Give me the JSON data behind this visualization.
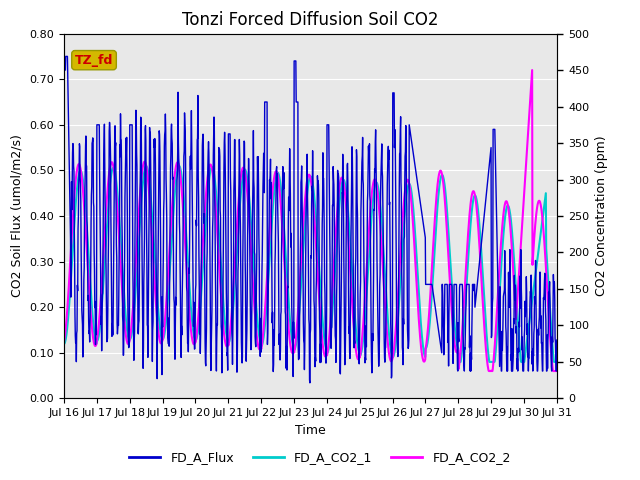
{
  "title": "Tonzi Forced Diffusion Soil CO2",
  "xlabel": "Time",
  "ylabel_left": "CO2 Soil Flux (umol/m2/s)",
  "ylabel_right": "CO2 Concentration (ppm)",
  "tag_label": "TZ_fd",
  "tag_color_bg": "#d4b800",
  "tag_color_text": "#cc0000",
  "xlim_days": [
    16,
    31
  ],
  "ylim_left": [
    0.0,
    0.8
  ],
  "ylim_right": [
    0,
    500
  ],
  "yticks_left": [
    0.0,
    0.1,
    0.2,
    0.3,
    0.4,
    0.5,
    0.6,
    0.7,
    0.8
  ],
  "yticks_right": [
    0,
    50,
    100,
    150,
    200,
    250,
    300,
    350,
    400,
    450,
    500
  ],
  "xtick_positions": [
    16,
    17,
    18,
    19,
    20,
    21,
    22,
    23,
    24,
    25,
    26,
    27,
    28,
    29,
    30,
    31
  ],
  "xticks_labels": [
    "Jul 16",
    "Jul 17",
    "Jul 18",
    "Jul 19",
    "Jul 20",
    "Jul 21",
    "Jul 22",
    "Jul 23",
    "Jul 24",
    "Jul 25",
    "Jul 26",
    "Jul 27",
    "Jul 28",
    "Jul 29",
    "Jul 30",
    "Jul 31"
  ],
  "color_flux": "#0000cc",
  "color_co2_1": "#00cccc",
  "color_co2_2": "#ff00ff",
  "legend_labels": [
    "FD_A_Flux",
    "FD_A_CO2_1",
    "FD_A_CO2_2"
  ],
  "flux_linewidth": 1.0,
  "co2_linewidth": 1.5,
  "bg_color": "#e8e8e8",
  "fig_bg": "#ffffff",
  "grid_color": "#ffffff",
  "title_fontsize": 12,
  "axis_label_fontsize": 9,
  "tick_fontsize": 8
}
